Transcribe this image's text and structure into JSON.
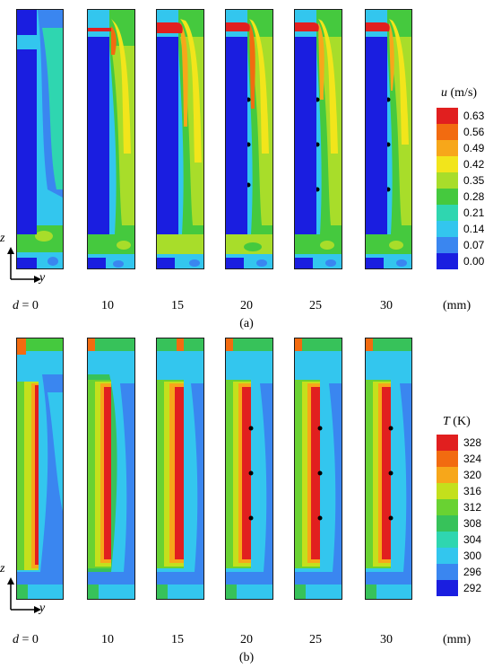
{
  "panel_a": {
    "legend": {
      "var": "u",
      "unit": "(m/s)",
      "values": [
        "0.63",
        "0.56",
        "0.49",
        "0.42",
        "0.35",
        "0.28",
        "0.21",
        "0.14",
        "0.07",
        "0.00"
      ],
      "colors": [
        "#e11f1f",
        "#f26b10",
        "#f7a71a",
        "#f2e51b",
        "#a8dd2a",
        "#45c93e",
        "#2fd6b0",
        "#33c6ee",
        "#3a86f0",
        "#1a1ee0"
      ]
    },
    "axis": {
      "z": "z",
      "y": "y"
    },
    "d_label": {
      "prefix": "d",
      "value": "= 0"
    },
    "d_values": [
      "10",
      "15",
      "20",
      "25",
      "30"
    ],
    "unit": "(mm)",
    "caption": "(a)"
  },
  "panel_b": {
    "legend": {
      "var": "T",
      "unit": "(K)",
      "values": [
        "328",
        "324",
        "320",
        "316",
        "312",
        "308",
        "304",
        "300",
        "296",
        "292"
      ],
      "colors": [
        "#e11f1f",
        "#f26b10",
        "#f7a71a",
        "#c4e01c",
        "#69d232",
        "#37c25a",
        "#2fd6b0",
        "#33c6ee",
        "#3a86f0",
        "#1a1ee0"
      ]
    },
    "axis": {
      "z": "z",
      "y": "y"
    },
    "d_label": {
      "prefix": "d",
      "value": "= 0"
    },
    "d_values": [
      "10",
      "15",
      "20",
      "25",
      "30"
    ],
    "unit": "(mm)",
    "caption": "(b)"
  }
}
